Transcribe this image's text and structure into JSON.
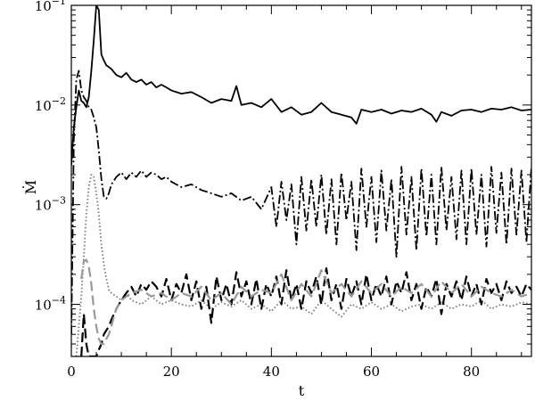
{
  "chart_data": {
    "type": "line",
    "xlabel": "t",
    "ylabel": "Ṁ",
    "xlim": [
      0,
      92
    ],
    "ylim": [
      3e-05,
      0.1
    ],
    "yscale": "log",
    "grid": false,
    "legend": "none",
    "x_ticks": [
      0,
      20,
      40,
      60,
      80
    ],
    "x_tick_labels": [
      "0",
      "20",
      "40",
      "60",
      "80"
    ],
    "y_ticks": [
      0.0001,
      0.001,
      0.01,
      0.1
    ],
    "y_tick_labels": [
      {
        "base": "10",
        "exp": "−4"
      },
      {
        "base": "10",
        "exp": "−3"
      },
      {
        "base": "10",
        "exp": "−2"
      },
      {
        "base": "10",
        "exp": "−1"
      }
    ],
    "series": [
      {
        "style": "solid",
        "color": "#000000",
        "x": [
          0,
          0.5,
          1,
          1.5,
          2,
          2.5,
          3,
          3.5,
          4,
          4.5,
          5,
          5.5,
          6,
          6.5,
          7,
          8,
          9,
          10,
          11,
          12,
          13,
          14,
          15,
          16,
          17,
          18,
          19,
          20,
          22,
          24,
          26,
          28,
          30,
          32,
          33,
          34,
          36,
          38,
          40,
          42,
          44,
          46,
          48,
          50,
          52,
          54,
          56,
          57,
          58,
          60,
          62,
          64,
          66,
          68,
          70,
          72,
          73,
          74,
          76,
          78,
          80,
          82,
          84,
          86,
          88,
          90,
          92
        ],
        "y": [
          0.0025,
          0.006,
          0.0095,
          0.014,
          0.011,
          0.0105,
          0.0095,
          0.012,
          0.022,
          0.045,
          0.1,
          0.09,
          0.032,
          0.028,
          0.025,
          0.023,
          0.02,
          0.019,
          0.021,
          0.018,
          0.017,
          0.018,
          0.016,
          0.017,
          0.015,
          0.016,
          0.015,
          0.014,
          0.013,
          0.0135,
          0.012,
          0.0105,
          0.0115,
          0.011,
          0.0155,
          0.01,
          0.0105,
          0.0095,
          0.0115,
          0.0085,
          0.0095,
          0.008,
          0.0085,
          0.0105,
          0.0085,
          0.008,
          0.0075,
          0.0065,
          0.009,
          0.0085,
          0.009,
          0.0082,
          0.0088,
          0.0085,
          0.0092,
          0.008,
          0.0068,
          0.0085,
          0.0078,
          0.0088,
          0.009,
          0.0085,
          0.0092,
          0.009,
          0.0095,
          0.0088,
          0.009
        ]
      },
      {
        "style": "dash-dot",
        "color": "#000000",
        "x": [
          0,
          0.5,
          1,
          1.5,
          2,
          2.5,
          3,
          3.5,
          4,
          4.5,
          5,
          5.5,
          6,
          6.5,
          7,
          7.5,
          8,
          9,
          10,
          11,
          12,
          13,
          14,
          15,
          16,
          17,
          18,
          19,
          20,
          22,
          24,
          26,
          28,
          30,
          32,
          34,
          36,
          38,
          40,
          41,
          42,
          43,
          44,
          45,
          46,
          47,
          48,
          49,
          50,
          51,
          52,
          53,
          54,
          55,
          56,
          57,
          58,
          59,
          60,
          61,
          62,
          63,
          64,
          65,
          66,
          67,
          68,
          69,
          70,
          71,
          72,
          73,
          74,
          75,
          76,
          77,
          78,
          79,
          80,
          81,
          82,
          83,
          84,
          85,
          86,
          87,
          88,
          89,
          90,
          91,
          92
        ],
        "y": [
          5e-05,
          0.0045,
          0.018,
          0.022,
          0.014,
          0.012,
          0.011,
          0.0095,
          0.009,
          0.0075,
          0.006,
          0.0035,
          0.0018,
          0.0012,
          0.00115,
          0.0013,
          0.0016,
          0.0019,
          0.0021,
          0.0018,
          0.0021,
          0.0019,
          0.0022,
          0.0019,
          0.0021,
          0.002,
          0.0018,
          0.0019,
          0.0017,
          0.0015,
          0.0016,
          0.0014,
          0.0013,
          0.0012,
          0.0013,
          0.0011,
          0.0012,
          0.0009,
          0.0015,
          0.0006,
          0.0017,
          0.0007,
          0.0016,
          0.0004,
          0.0019,
          0.00055,
          0.0018,
          0.0006,
          0.002,
          0.0005,
          0.0018,
          0.0004,
          0.0021,
          0.0007,
          0.0017,
          0.00035,
          0.0023,
          0.0006,
          0.0019,
          0.00042,
          0.0022,
          0.00055,
          0.0018,
          0.0003,
          0.0024,
          0.0005,
          0.0019,
          0.00035,
          0.0023,
          0.00048,
          0.002,
          0.0004,
          0.0024,
          0.00055,
          0.0019,
          0.00045,
          0.0022,
          0.0004,
          0.0023,
          0.0005,
          0.002,
          0.00038,
          0.0024,
          0.00052,
          0.0021,
          0.0004,
          0.0023,
          0.0005,
          0.0022,
          0.00042,
          0.0024
        ]
      },
      {
        "style": "dotted",
        "color": "#777777",
        "x": [
          1,
          1.5,
          2,
          2.5,
          3,
          3.5,
          4,
          4.5,
          5,
          5.5,
          6,
          6.5,
          7,
          7.5,
          8,
          9,
          10,
          11,
          12,
          14,
          16,
          18,
          20,
          22,
          24,
          26,
          28,
          30,
          32,
          34,
          36,
          38,
          40,
          42,
          44,
          46,
          48,
          50,
          52,
          54,
          56,
          58,
          60,
          62,
          64,
          66,
          68,
          70,
          72,
          74,
          76,
          78,
          80,
          82,
          84,
          86,
          88,
          90,
          92
        ],
        "y": [
          3e-05,
          6e-05,
          0.00012,
          0.0003,
          0.0008,
          0.0015,
          0.002,
          0.0019,
          0.0013,
          0.0008,
          0.0004,
          0.00025,
          0.00018,
          0.00014,
          0.00013,
          0.00012,
          0.00011,
          0.00013,
          0.00011,
          0.0001,
          0.00012,
          0.0001,
          0.00011,
          0.0001,
          9.5e-05,
          0.00011,
          9e-05,
          0.000105,
          9.5e-05,
          0.00011,
          9e-05,
          0.0001,
          8.5e-05,
          0.00011,
          9e-05,
          9.5e-05,
          8e-05,
          0.00011,
          9e-05,
          7.5e-05,
          0.0001,
          9e-05,
          0.000105,
          9e-05,
          0.0001,
          8.5e-05,
          9.5e-05,
          0.0001,
          9e-05,
          0.000105,
          9e-05,
          0.0001,
          9.5e-05,
          0.00011,
          9e-05,
          0.0001,
          9.5e-05,
          0.000105,
          0.0001
        ]
      },
      {
        "style": "long-dash",
        "color": "#000000",
        "x": [
          2,
          2.5,
          3,
          3.5,
          4,
          4.5,
          5,
          5.5,
          6,
          6.5,
          7,
          7.5,
          8,
          9,
          10,
          11,
          12,
          13,
          14,
          15,
          16,
          17,
          18,
          19,
          20,
          21,
          22,
          23,
          24,
          25,
          26,
          27,
          28,
          29,
          30,
          31,
          32,
          33,
          34,
          35,
          36,
          37,
          38,
          39,
          40,
          41,
          42,
          43,
          44,
          45,
          46,
          47,
          48,
          49,
          50,
          51,
          52,
          53,
          54,
          55,
          56,
          57,
          58,
          59,
          60,
          61,
          62,
          63,
          64,
          65,
          66,
          67,
          68,
          69,
          70,
          71,
          72,
          73,
          74,
          75,
          76,
          77,
          78,
          79,
          80,
          81,
          82,
          83,
          84,
          85,
          86,
          87,
          88,
          89,
          90,
          91,
          92
        ],
        "y": [
          3e-05,
          8e-05,
          4e-05,
          3e-05,
          3e-05,
          3e-05,
          3e-05,
          3.5e-05,
          4e-05,
          5e-05,
          5.5e-05,
          6e-05,
          7e-05,
          9e-05,
          0.00011,
          0.00013,
          0.00015,
          0.00012,
          0.00016,
          0.00014,
          0.00017,
          0.00015,
          0.00012,
          0.00018,
          0.00011,
          0.00016,
          0.00013,
          0.0002,
          0.00011,
          0.00017,
          9e-05,
          0.00015,
          6.5e-05,
          0.00019,
          0.00011,
          0.00016,
          0.0001,
          0.00021,
          0.00012,
          0.00017,
          0.0001,
          0.00018,
          9e-05,
          0.00016,
          0.00012,
          0.00019,
          0.0001,
          0.00022,
          0.00011,
          0.00016,
          9e-05,
          0.00017,
          0.00013,
          0.00019,
          0.0001,
          0.00023,
          0.00011,
          0.00016,
          9e-05,
          0.00018,
          0.00012,
          0.00017,
          0.0001,
          0.0002,
          0.00011,
          0.00016,
          0.00012,
          0.00019,
          0.0001,
          0.00017,
          0.00013,
          0.00021,
          0.00011,
          0.00016,
          9e-05,
          0.00015,
          0.00012,
          0.00018,
          8e-05,
          0.00016,
          0.00012,
          0.00017,
          0.00011,
          0.00019,
          0.00012,
          0.00016,
          0.0001,
          0.00018,
          0.00013,
          0.00016,
          0.00011,
          0.00017,
          0.00013,
          0.00015,
          0.00012,
          0.00016,
          0.00014
        ]
      },
      {
        "style": "long-dash",
        "color": "#999999",
        "x": [
          2,
          2.5,
          3,
          3.5,
          4,
          4.5,
          5,
          5.5,
          6,
          6.5,
          7,
          7.5,
          8,
          8.5,
          9,
          10,
          11,
          12,
          14,
          16,
          18,
          20,
          22,
          24,
          26,
          28,
          30,
          32,
          34,
          36,
          38,
          40,
          42,
          44,
          46,
          48,
          50,
          52,
          54,
          56,
          58,
          60,
          62,
          64,
          66,
          68,
          70,
          72,
          74,
          76,
          78,
          80,
          82,
          84,
          86,
          88,
          90,
          92
        ],
        "y": [
          0.00018,
          0.00027,
          0.00028,
          0.00024,
          0.00016,
          9e-05,
          6e-05,
          4.5e-05,
          4e-05,
          4e-05,
          4.5e-05,
          5e-05,
          6e-05,
          7.5e-05,
          9e-05,
          0.00011,
          0.00012,
          0.00013,
          0.00014,
          0.00012,
          0.00013,
          0.00011,
          0.00013,
          0.00012,
          0.00015,
          0.00011,
          0.00013,
          0.0001,
          0.00015,
          0.00012,
          0.00014,
          0.00013,
          0.0002,
          0.00011,
          0.00016,
          0.00012,
          0.00022,
          0.00013,
          0.00016,
          0.00012,
          0.00017,
          0.00013,
          0.00016,
          0.00012,
          0.00015,
          0.00013,
          0.00016,
          0.00012,
          0.00017,
          0.00013,
          0.00016,
          0.00012,
          0.00015,
          0.00013,
          0.00012,
          0.00014,
          0.00012,
          0.00013
        ]
      }
    ]
  }
}
